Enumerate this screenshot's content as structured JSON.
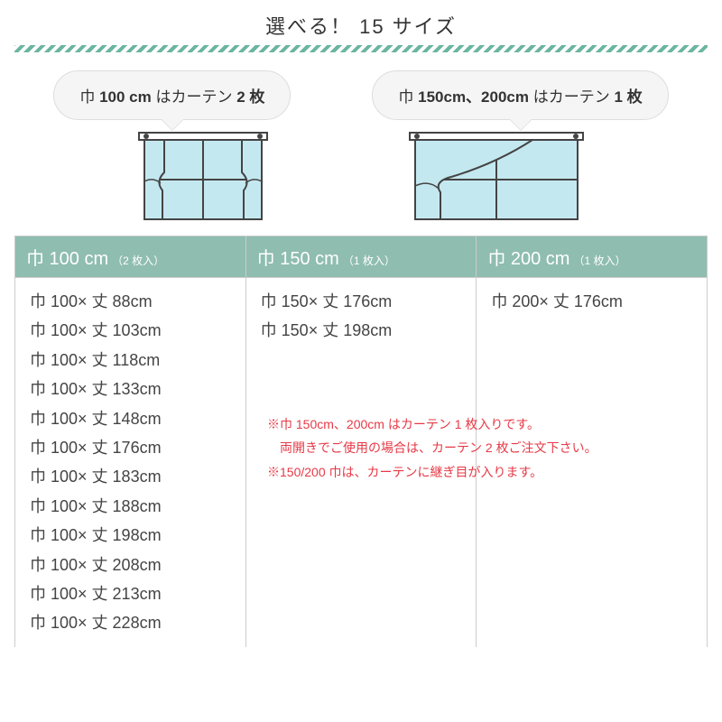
{
  "title": "選べる！ 15 サイズ",
  "bubbles": [
    {
      "prefix": "巾 ",
      "bold1": "100 cm",
      "mid": " はカーテン ",
      "bold2": "2 枚"
    },
    {
      "prefix": "巾 ",
      "bold1": "150cm、200cm",
      "mid": " はカーテン ",
      "bold2": "1 枚"
    }
  ],
  "headers": [
    {
      "main": "巾 100 cm",
      "note": "（2 枚入）"
    },
    {
      "main": "巾 150 cm",
      "note": "（1 枚入）"
    },
    {
      "main": "巾 200 cm",
      "note": "（1 枚入）"
    }
  ],
  "columns": {
    "c100": [
      "巾 100× 丈 88cm",
      "巾 100× 丈 103cm",
      "巾 100× 丈 118cm",
      "巾 100× 丈 133cm",
      "巾 100× 丈 148cm",
      "巾 100× 丈 176cm",
      "巾 100× 丈 183cm",
      "巾 100× 丈 188cm",
      "巾 100× 丈 198cm",
      "巾 100× 丈 208cm",
      "巾 100× 丈 213cm",
      "巾 100× 丈 228cm"
    ],
    "c150": [
      "巾 150× 丈 176cm",
      "巾 150× 丈 198cm"
    ],
    "c200": [
      "巾 200× 丈 176cm"
    ]
  },
  "notes": [
    "※巾 150cm、200cm はカーテン 1 枚入りです。",
    "　両開きでご使用の場合は、カーテン 2 枚ご注文下さい。",
    "※150/200 巾は、カーテンに継ぎ目が入ります。"
  ],
  "colors": {
    "accent": "#8fbdb0",
    "stripe": "#6bb5a0",
    "curtain": "#c4e8f0",
    "red": "#e63946"
  }
}
